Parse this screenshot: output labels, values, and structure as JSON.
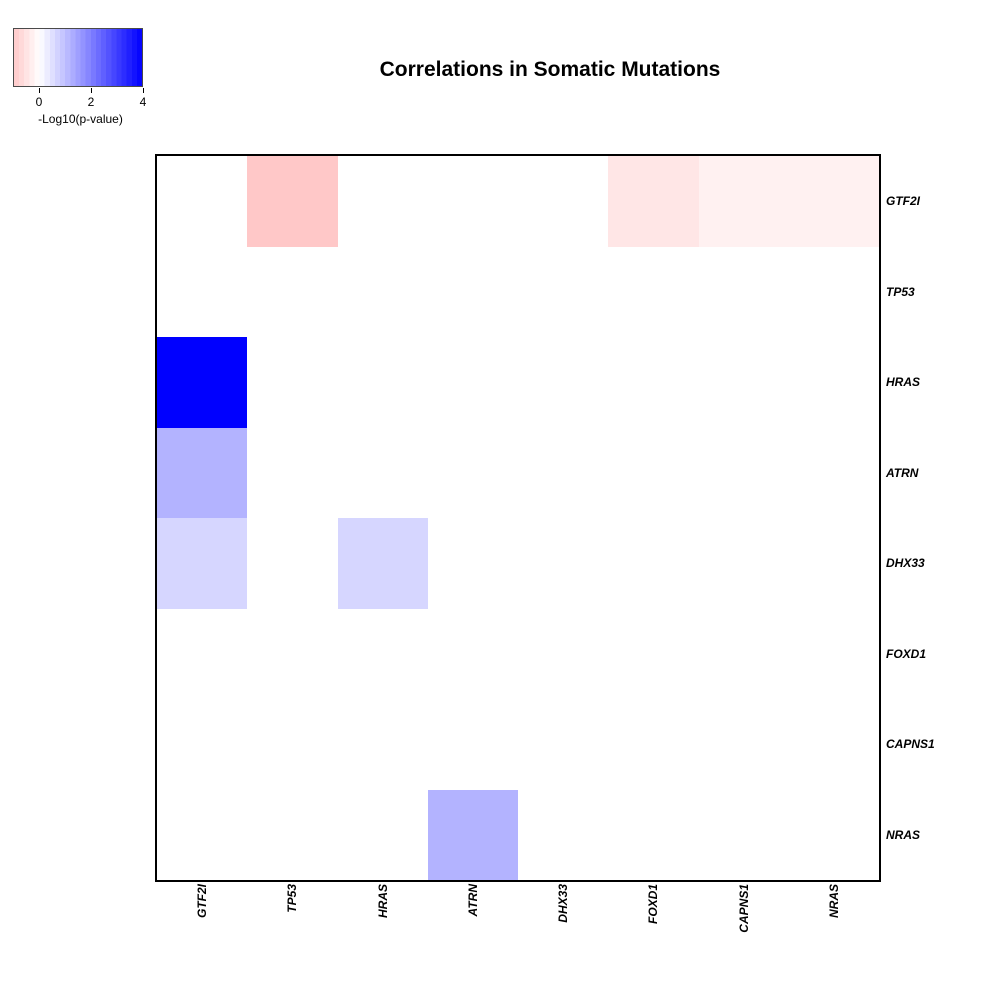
{
  "title": "Correlations in Somatic Mutations",
  "legend": {
    "label": "-Log10(p-value)",
    "ticks": [
      "0",
      "2",
      "4"
    ],
    "tick_values": [
      0,
      2,
      4
    ],
    "range_min": -1,
    "range_max": 4,
    "bands": 25,
    "color_min": "#FFC8C8",
    "color_mid": "#FFFFFF",
    "color_max": "#0000FF"
  },
  "chart_data": {
    "type": "heatmap",
    "title": "Correlations in Somatic Mutations",
    "value_label": "-Log10(p-value)",
    "rows": [
      "GTF2I",
      "TP53",
      "HRAS",
      "ATRN",
      "DHX33",
      "FOXD1",
      "CAPNS1",
      "NRAS"
    ],
    "columns": [
      "GTF2I",
      "TP53",
      "HRAS",
      "ATRN",
      "DHX33",
      "FOXD1",
      "CAPNS1",
      "NRAS"
    ],
    "matrix": [
      [
        0,
        -1.0,
        0,
        0,
        0,
        -0.45,
        -0.25,
        -0.25
      ],
      [
        0,
        0,
        0,
        0,
        0,
        0,
        0,
        0
      ],
      [
        4.0,
        0,
        0,
        0,
        0,
        0,
        0,
        0
      ],
      [
        1.2,
        0,
        0,
        0,
        0,
        0,
        0,
        0
      ],
      [
        0.65,
        0,
        0.65,
        0,
        0,
        0,
        0,
        0
      ],
      [
        0,
        0,
        0,
        0,
        0,
        0,
        0,
        0
      ],
      [
        0,
        0,
        0,
        0,
        0,
        0,
        0,
        0
      ],
      [
        0,
        0,
        0,
        1.2,
        0,
        0,
        0,
        0
      ]
    ],
    "colorscale": {
      "min": -1,
      "max": 4,
      "min_color": "#FFC8C8",
      "mid_color": "#FFFFFF",
      "max_color": "#0000FF"
    },
    "legend_position": "top-left",
    "grid": false
  }
}
